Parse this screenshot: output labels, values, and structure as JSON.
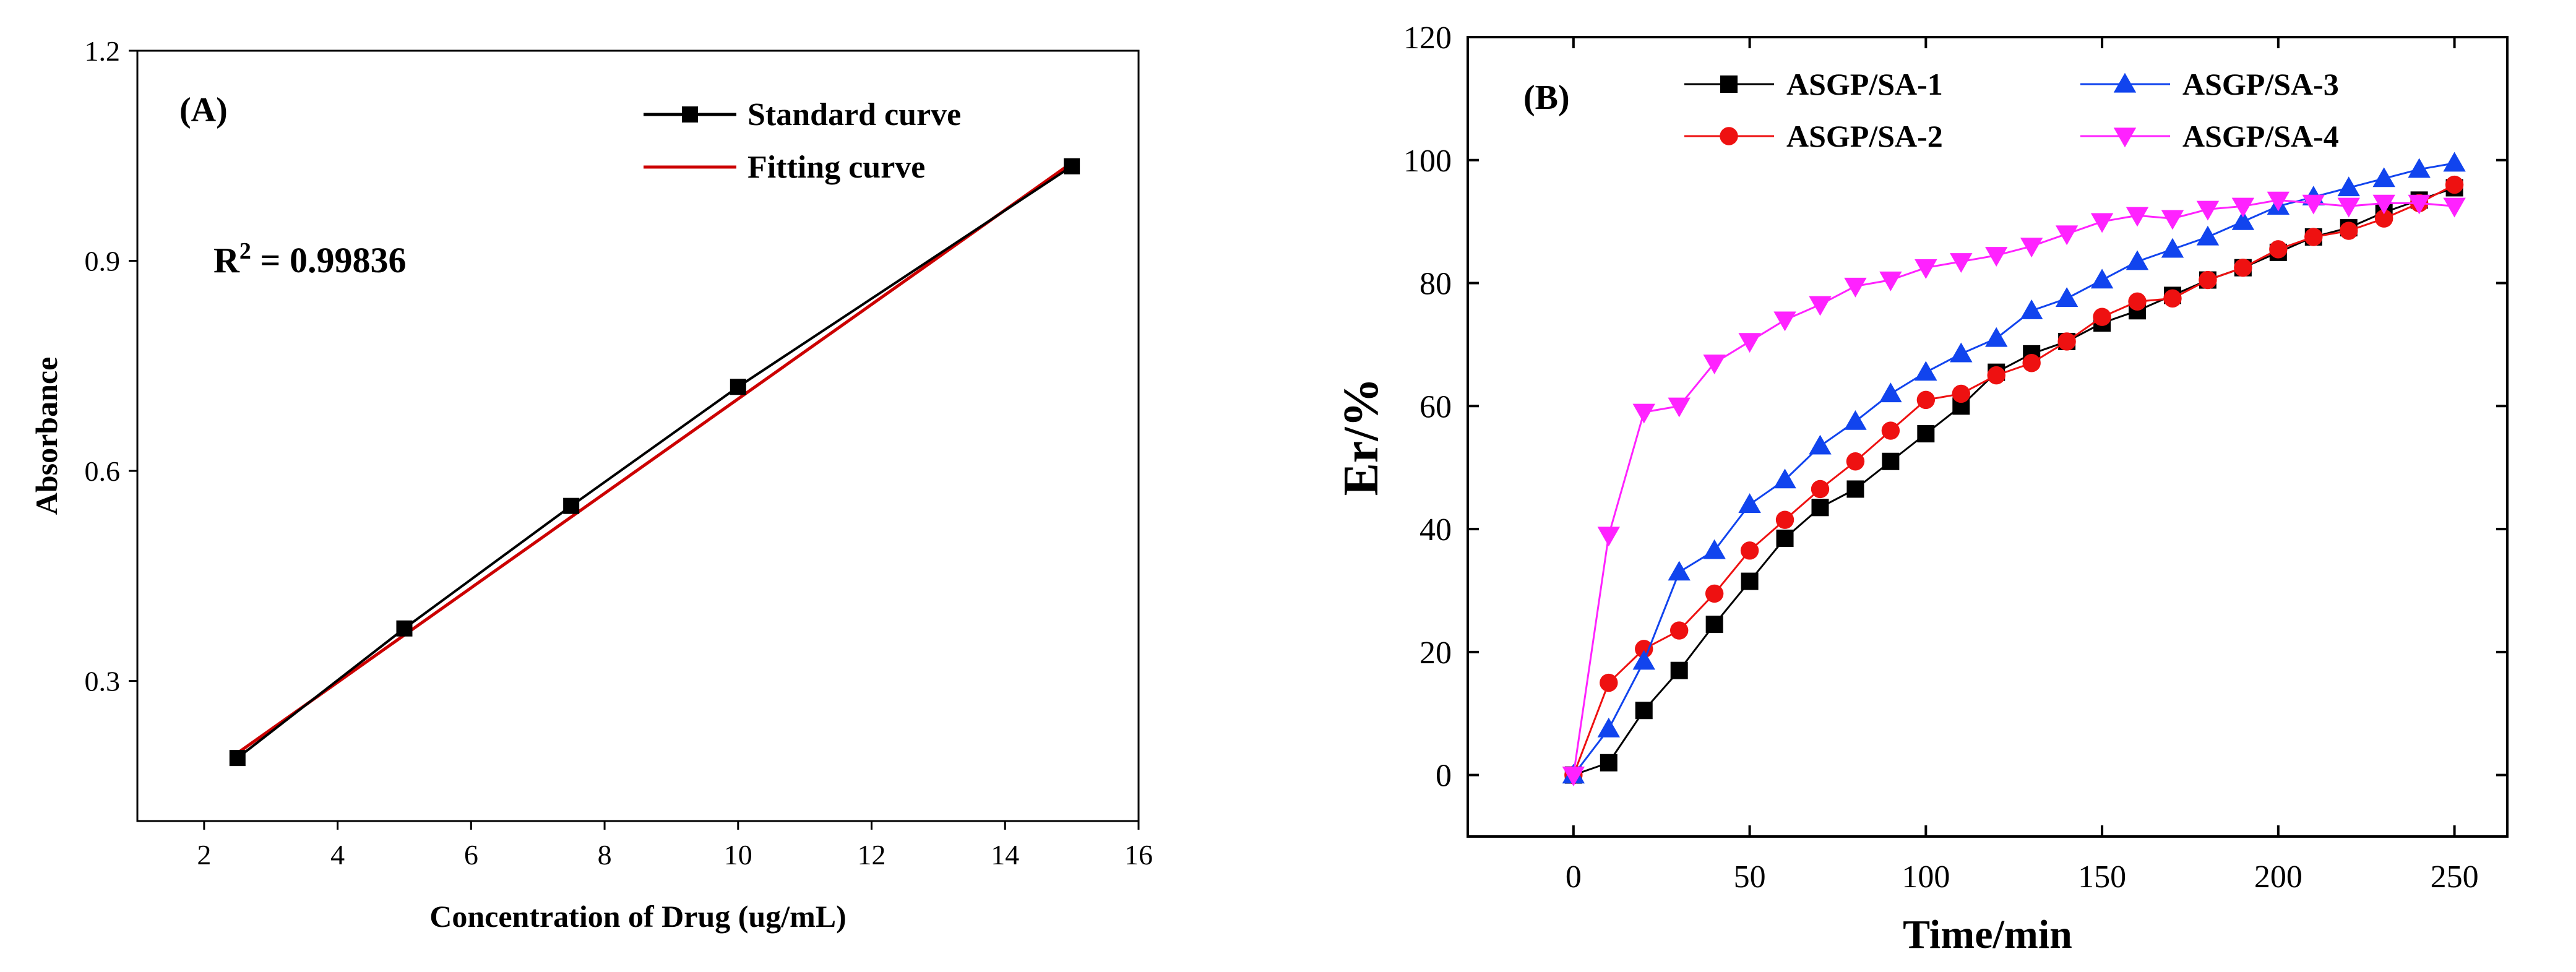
{
  "chart_data": [
    {
      "type": "line",
      "panel": "(A)",
      "title": "",
      "xlabel": "Concentration of Drug (ug/mL)",
      "ylabel": "Absorbance",
      "xlim": [
        1,
        16
      ],
      "ylim": [
        0.1,
        1.2
      ],
      "xticks": [
        2,
        4,
        6,
        8,
        10,
        12,
        14,
        16
      ],
      "yticks": [
        0.3,
        0.6,
        0.9,
        1.2
      ],
      "xtick_labels": [
        "2",
        "4",
        "6",
        "8",
        "10",
        "12",
        "14",
        "16"
      ],
      "ytick_labels": [
        "0.3",
        "0.6",
        "0.9",
        "1.2"
      ],
      "annotation_prefix": "R",
      "annotation_sup": "2",
      "annotation_value": " = 0.99836",
      "legend_position": "top-right",
      "series": [
        {
          "name": "Standard curve",
          "color": "#000000",
          "marker": "square",
          "x": [
            2.5,
            5,
            7.5,
            10,
            15
          ],
          "y": [
            0.19,
            0.375,
            0.55,
            0.72,
            1.035
          ]
        },
        {
          "name": "Fitting curve",
          "color": "#cc0000",
          "marker": "none",
          "x": [
            2.5,
            15
          ],
          "y": [
            0.197,
            1.04
          ]
        }
      ]
    },
    {
      "type": "line",
      "panel": "(B)",
      "title": "",
      "xlabel": "Time/min",
      "ylabel": "Er/%",
      "xlim": [
        -30,
        265
      ],
      "ylim": [
        -10,
        120
      ],
      "xticks": [
        0,
        50,
        100,
        150,
        200,
        250
      ],
      "yticks": [
        0,
        20,
        40,
        60,
        80,
        100,
        120
      ],
      "xtick_labels": [
        "0",
        "50",
        "100",
        "150",
        "200",
        "250"
      ],
      "ytick_labels": [
        "0",
        "20",
        "40",
        "60",
        "80",
        "100",
        "120"
      ],
      "legend_position": "top",
      "x": [
        0,
        10,
        20,
        30,
        40,
        50,
        60,
        70,
        80,
        90,
        100,
        110,
        120,
        130,
        140,
        150,
        160,
        170,
        180,
        190,
        200,
        210,
        220,
        230,
        240,
        250
      ],
      "series": [
        {
          "name": "ASGP/SA-1",
          "color": "#000000",
          "marker": "square",
          "y": [
            0,
            2,
            10.5,
            17,
            24.5,
            31.5,
            38.5,
            43.5,
            46.5,
            51,
            55.5,
            60,
            65.5,
            68.5,
            70.5,
            73.5,
            75.5,
            78,
            80.5,
            82.5,
            85,
            87.5,
            89,
            91.5,
            93.5,
            95.5
          ]
        },
        {
          "name": "ASGP/SA-2",
          "color": "#ee1111",
          "marker": "circle",
          "y": [
            0,
            15,
            20.5,
            23.5,
            29.5,
            36.5,
            41.5,
            46.5,
            51,
            56,
            61,
            62,
            65,
            67,
            70.5,
            74.5,
            77,
            77.5,
            80.5,
            82.5,
            85.5,
            87.5,
            88.5,
            90.5,
            93,
            96
          ]
        },
        {
          "name": "ASGP/SA-3",
          "color": "#1144ee",
          "marker": "triangle-up",
          "y": [
            0,
            7.5,
            18.5,
            33,
            36.5,
            44,
            48,
            53.5,
            57.5,
            62,
            65.5,
            68.5,
            71,
            75.5,
            77.5,
            80.5,
            83.5,
            85.5,
            87.5,
            90,
            92.5,
            94,
            95.5,
            97,
            98.5,
            99.5
          ]
        },
        {
          "name": "ASGP/SA-4",
          "color": "#ff22ff",
          "marker": "triangle-down",
          "y": [
            0,
            39,
            59,
            60,
            67,
            70.5,
            74,
            76.5,
            79.5,
            80.5,
            82.5,
            83.5,
            84.5,
            86,
            88,
            90,
            91,
            90.5,
            92,
            92.5,
            93.5,
            93,
            92.5,
            93,
            93,
            92.5
          ]
        }
      ]
    }
  ]
}
